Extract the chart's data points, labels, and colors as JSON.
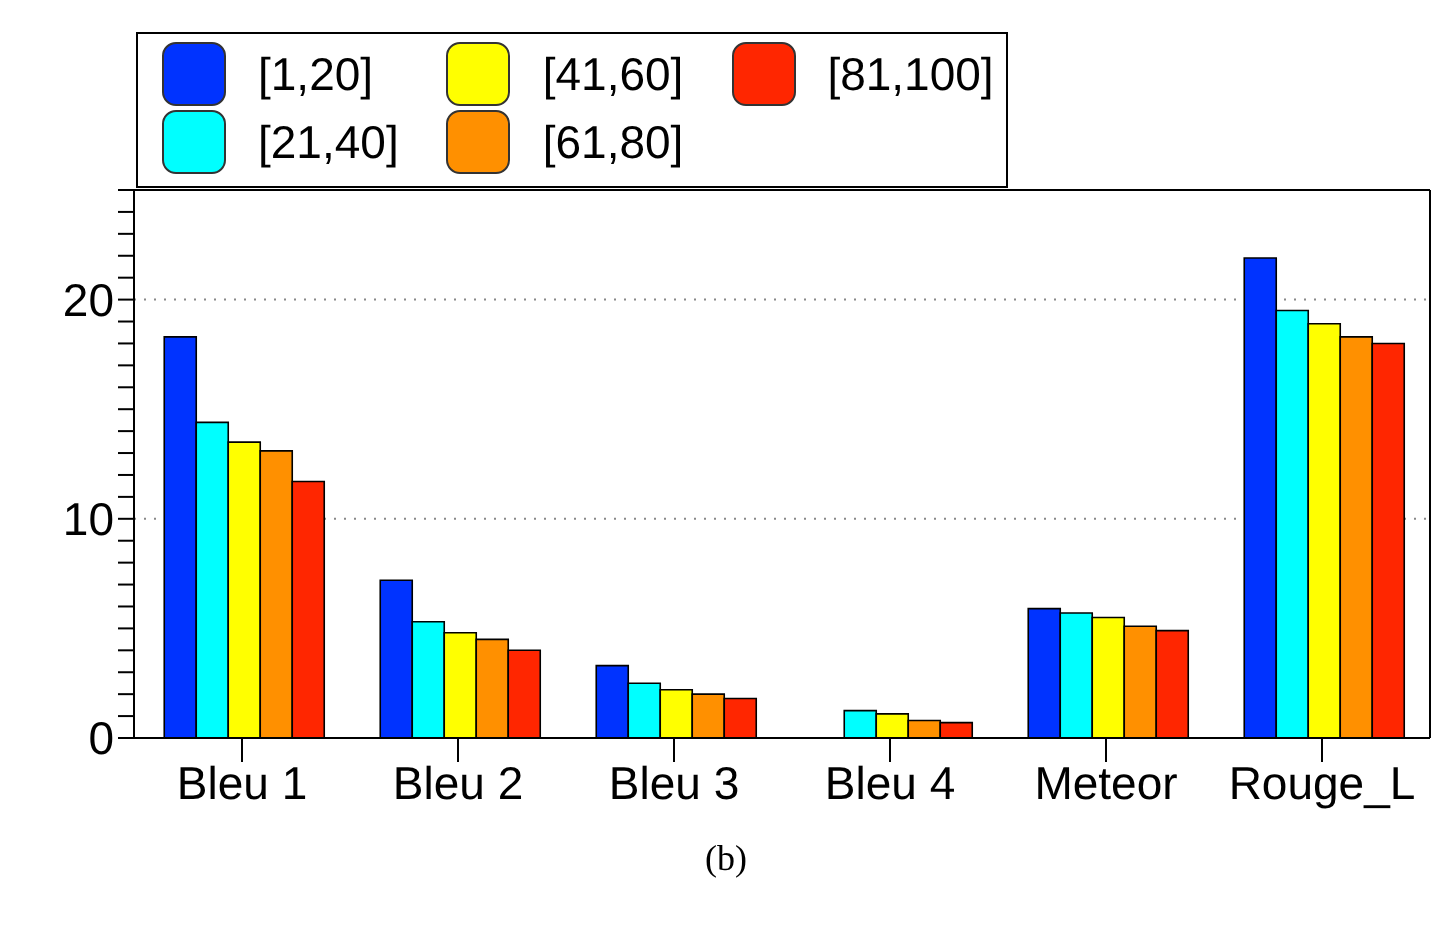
{
  "chart_data": {
    "type": "bar",
    "categories": [
      "Bleu 1",
      "Bleu 2",
      "Bleu 3",
      "Bleu 4",
      "Meteor",
      "Rouge_L"
    ],
    "series": [
      {
        "name": "[1,20]",
        "color": "#0033ff",
        "values": [
          18.3,
          7.2,
          3.3,
          0,
          5.9,
          21.9
        ]
      },
      {
        "name": "[21,40]",
        "color": "#00ffff",
        "values": [
          14.4,
          5.3,
          2.5,
          1.25,
          5.7,
          19.5
        ]
      },
      {
        "name": "[41,60]",
        "color": "#ffff00",
        "values": [
          13.5,
          4.8,
          2.2,
          1.1,
          5.5,
          18.9
        ]
      },
      {
        "name": "[61,80]",
        "color": "#ff9000",
        "values": [
          13.1,
          4.5,
          2.0,
          0.8,
          5.1,
          18.3
        ]
      },
      {
        "name": "[81,100]",
        "color": "#ff2600",
        "values": [
          11.7,
          4.0,
          1.8,
          0.7,
          4.9,
          18.0
        ]
      }
    ],
    "ylim": [
      0,
      25
    ],
    "yticks": [
      0,
      {
        "value": 1,
        "label": null
      },
      {
        "value": 2,
        "label": null
      },
      {
        "value": 3,
        "label": null
      },
      {
        "value": 4,
        "label": null
      },
      {
        "value": 5,
        "label": null
      },
      {
        "value": 6,
        "label": null
      },
      {
        "value": 7,
        "label": null
      },
      {
        "value": 8,
        "label": null
      },
      {
        "value": 9,
        "label": null
      },
      10,
      {
        "value": 11,
        "label": null
      },
      {
        "value": 12,
        "label": null
      },
      {
        "value": 13,
        "label": null
      },
      {
        "value": 14,
        "label": null
      },
      {
        "value": 15,
        "label": null
      },
      {
        "value": 16,
        "label": null
      },
      {
        "value": 17,
        "label": null
      },
      {
        "value": 18,
        "label": null
      },
      {
        "value": 19,
        "label": null
      },
      20,
      {
        "value": 21,
        "label": null
      },
      {
        "value": 22,
        "label": null
      },
      {
        "value": 23,
        "label": null
      },
      {
        "value": 24,
        "label": null
      },
      {
        "value": 25,
        "label": null
      }
    ],
    "grid": "y",
    "legend": "top left",
    "annotations": [
      "(b)"
    ]
  }
}
